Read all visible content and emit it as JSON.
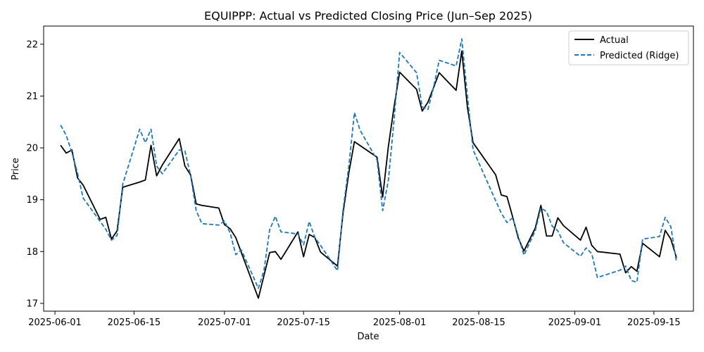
{
  "chart_data": {
    "type": "line",
    "title": "EQUIPPP: Actual vs Predicted Closing Price (Jun–Sep 2025)",
    "xlabel": "Date",
    "ylabel": "Price",
    "xlim": [
      "2025-05-30",
      "2025-09-22"
    ],
    "ylim": [
      16.85,
      22.35
    ],
    "x_ticks": [
      "2025-06-01",
      "2025-06-15",
      "2025-07-01",
      "2025-07-15",
      "2025-08-01",
      "2025-08-15",
      "2025-09-01",
      "2025-09-15"
    ],
    "y_ticks": [
      17,
      18,
      19,
      20,
      21,
      22
    ],
    "grid": false,
    "legend_position": "upper right",
    "series": [
      {
        "name": "Actual",
        "color": "#000000",
        "style": "solid",
        "points": [
          [
            "2025-06-02",
            20.05
          ],
          [
            "2025-06-03",
            19.9
          ],
          [
            "2025-06-04",
            19.96
          ],
          [
            "2025-06-05",
            19.42
          ],
          [
            "2025-06-06",
            19.28
          ],
          [
            "2025-06-09",
            18.62
          ],
          [
            "2025-06-10",
            18.66
          ],
          [
            "2025-06-11",
            18.24
          ],
          [
            "2025-06-12",
            18.4
          ],
          [
            "2025-06-13",
            19.24
          ],
          [
            "2025-06-16",
            19.34
          ],
          [
            "2025-06-17",
            19.38
          ],
          [
            "2025-06-18",
            20.05
          ],
          [
            "2025-06-19",
            19.46
          ],
          [
            "2025-06-20",
            19.67
          ],
          [
            "2025-06-23",
            20.18
          ],
          [
            "2025-06-24",
            19.65
          ],
          [
            "2025-06-25",
            19.48
          ],
          [
            "2025-06-26",
            18.92
          ],
          [
            "2025-06-27",
            18.89
          ],
          [
            "2025-06-30",
            18.84
          ],
          [
            "2025-07-01",
            18.52
          ],
          [
            "2025-07-02",
            18.44
          ],
          [
            "2025-07-03",
            18.27
          ],
          [
            "2025-07-07",
            17.1
          ],
          [
            "2025-07-08",
            17.54
          ],
          [
            "2025-07-09",
            17.98
          ],
          [
            "2025-07-10",
            18.0
          ],
          [
            "2025-07-11",
            17.85
          ],
          [
            "2025-07-14",
            18.38
          ],
          [
            "2025-07-15",
            17.9
          ],
          [
            "2025-07-16",
            18.33
          ],
          [
            "2025-07-17",
            18.27
          ],
          [
            "2025-07-18",
            17.99
          ],
          [
            "2025-07-21",
            17.72
          ],
          [
            "2025-07-22",
            18.75
          ],
          [
            "2025-07-23",
            19.51
          ],
          [
            "2025-07-24",
            20.12
          ],
          [
            "2025-07-28",
            19.82
          ],
          [
            "2025-07-29",
            19.05
          ],
          [
            "2025-07-30",
            20.02
          ],
          [
            "2025-07-31",
            20.78
          ],
          [
            "2025-08-01",
            21.46
          ],
          [
            "2025-08-04",
            21.13
          ],
          [
            "2025-08-05",
            20.71
          ],
          [
            "2025-08-06",
            20.88
          ],
          [
            "2025-08-07",
            21.16
          ],
          [
            "2025-08-08",
            21.45
          ],
          [
            "2025-08-11",
            21.11
          ],
          [
            "2025-08-12",
            21.87
          ],
          [
            "2025-08-13",
            20.78
          ],
          [
            "2025-08-14",
            20.1
          ],
          [
            "2025-08-18",
            19.48
          ],
          [
            "2025-08-19",
            19.09
          ],
          [
            "2025-08-20",
            19.06
          ],
          [
            "2025-08-21",
            18.67
          ],
          [
            "2025-08-22",
            18.26
          ],
          [
            "2025-08-23",
            18.01
          ],
          [
            "2025-08-25",
            18.45
          ],
          [
            "2025-08-26",
            18.89
          ],
          [
            "2025-08-27",
            18.3
          ],
          [
            "2025-08-28",
            18.3
          ],
          [
            "2025-08-29",
            18.65
          ],
          [
            "2025-08-30",
            18.5
          ],
          [
            "2025-09-02",
            18.22
          ],
          [
            "2025-09-03",
            18.47
          ],
          [
            "2025-09-04",
            18.12
          ],
          [
            "2025-09-05",
            18.0
          ],
          [
            "2025-09-09",
            17.95
          ],
          [
            "2025-09-10",
            17.59
          ],
          [
            "2025-09-11",
            17.71
          ],
          [
            "2025-09-12",
            17.62
          ],
          [
            "2025-09-13",
            18.16
          ],
          [
            "2025-09-16",
            17.9
          ],
          [
            "2025-09-17",
            18.41
          ],
          [
            "2025-09-18",
            18.24
          ],
          [
            "2025-09-19",
            17.88
          ]
        ]
      },
      {
        "name": "Predicted (Ridge)",
        "color": "#1f77b4",
        "style": "dashed",
        "points": [
          [
            "2025-06-02",
            20.44
          ],
          [
            "2025-06-03",
            20.24
          ],
          [
            "2025-06-04",
            19.91
          ],
          [
            "2025-06-05",
            19.51
          ],
          [
            "2025-06-06",
            19.03
          ],
          [
            "2025-06-09",
            18.58
          ],
          [
            "2025-06-10",
            18.43
          ],
          [
            "2025-06-11",
            18.22
          ],
          [
            "2025-06-12",
            18.31
          ],
          [
            "2025-06-13",
            19.3
          ],
          [
            "2025-06-16",
            20.36
          ],
          [
            "2025-06-17",
            20.1
          ],
          [
            "2025-06-18",
            20.36
          ],
          [
            "2025-06-19",
            19.65
          ],
          [
            "2025-06-20",
            19.5
          ],
          [
            "2025-06-23",
            19.96
          ],
          [
            "2025-06-24",
            19.94
          ],
          [
            "2025-06-25",
            19.47
          ],
          [
            "2025-06-26",
            18.79
          ],
          [
            "2025-06-27",
            18.54
          ],
          [
            "2025-06-30",
            18.51
          ],
          [
            "2025-07-01",
            18.59
          ],
          [
            "2025-07-02",
            18.36
          ],
          [
            "2025-07-03",
            17.94
          ],
          [
            "2025-07-04",
            18.03
          ],
          [
            "2025-07-07",
            17.29
          ],
          [
            "2025-07-08",
            17.64
          ],
          [
            "2025-07-09",
            18.42
          ],
          [
            "2025-07-10",
            18.68
          ],
          [
            "2025-07-11",
            18.38
          ],
          [
            "2025-07-14",
            18.34
          ],
          [
            "2025-07-15",
            18.13
          ],
          [
            "2025-07-16",
            18.58
          ],
          [
            "2025-07-17",
            18.27
          ],
          [
            "2025-07-18",
            18.12
          ],
          [
            "2025-07-21",
            17.63
          ],
          [
            "2025-07-22",
            18.82
          ],
          [
            "2025-07-23",
            19.64
          ],
          [
            "2025-07-24",
            20.68
          ],
          [
            "2025-07-25",
            20.34
          ],
          [
            "2025-07-28",
            19.77
          ],
          [
            "2025-07-29",
            18.79
          ],
          [
            "2025-07-30",
            19.37
          ],
          [
            "2025-07-31",
            20.52
          ],
          [
            "2025-08-01",
            21.84
          ],
          [
            "2025-08-04",
            21.45
          ],
          [
            "2025-08-05",
            20.79
          ],
          [
            "2025-08-06",
            20.74
          ],
          [
            "2025-08-07",
            21.16
          ],
          [
            "2025-08-08",
            21.69
          ],
          [
            "2025-08-11",
            21.58
          ],
          [
            "2025-08-12",
            22.1
          ],
          [
            "2025-08-13",
            21.0
          ],
          [
            "2025-08-14",
            19.96
          ],
          [
            "2025-08-18",
            18.98
          ],
          [
            "2025-08-19",
            18.74
          ],
          [
            "2025-08-20",
            18.56
          ],
          [
            "2025-08-21",
            18.65
          ],
          [
            "2025-08-22",
            18.3
          ],
          [
            "2025-08-23",
            17.93
          ],
          [
            "2025-08-25",
            18.4
          ],
          [
            "2025-08-26",
            18.84
          ],
          [
            "2025-08-27",
            18.77
          ],
          [
            "2025-08-28",
            18.49
          ],
          [
            "2025-08-29",
            18.4
          ],
          [
            "2025-08-30",
            18.17
          ],
          [
            "2025-09-02",
            17.91
          ],
          [
            "2025-09-03",
            18.07
          ],
          [
            "2025-09-04",
            17.96
          ],
          [
            "2025-09-05",
            17.5
          ],
          [
            "2025-09-09",
            17.64
          ],
          [
            "2025-09-10",
            17.72
          ],
          [
            "2025-09-11",
            17.44
          ],
          [
            "2025-09-12",
            17.41
          ],
          [
            "2025-09-13",
            18.24
          ],
          [
            "2025-09-16",
            18.29
          ],
          [
            "2025-09-17",
            18.66
          ],
          [
            "2025-09-18",
            18.48
          ],
          [
            "2025-09-19",
            17.79
          ]
        ]
      }
    ]
  }
}
